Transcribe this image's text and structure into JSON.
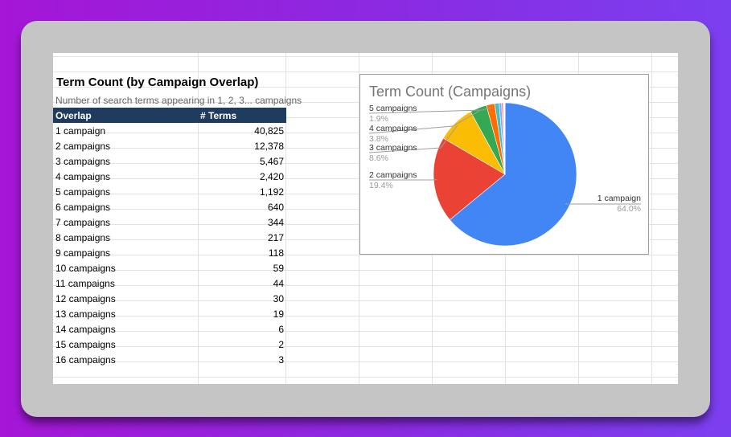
{
  "table": {
    "title": "Term Count (by Campaign Overlap)",
    "subtitle": "Number of search terms appearing in 1, 2, 3... campaigns",
    "col_overlap": "Overlap",
    "col_terms": "# Terms",
    "rows": [
      {
        "label": "1 campaign",
        "value": "40,825"
      },
      {
        "label": "2 campaigns",
        "value": "12,378"
      },
      {
        "label": "3 campaigns",
        "value": "5,467"
      },
      {
        "label": "4 campaigns",
        "value": "2,420"
      },
      {
        "label": "5 campaigns",
        "value": "1,192"
      },
      {
        "label": "6 campaigns",
        "value": "640"
      },
      {
        "label": "7 campaigns",
        "value": "344"
      },
      {
        "label": "8 campaigns",
        "value": "217"
      },
      {
        "label": "9 campaigns",
        "value": "118"
      },
      {
        "label": "10 campaigns",
        "value": "59"
      },
      {
        "label": "11 campaigns",
        "value": "44"
      },
      {
        "label": "12 campaigns",
        "value": "30"
      },
      {
        "label": "13 campaigns",
        "value": "19"
      },
      {
        "label": "14 campaigns",
        "value": "6"
      },
      {
        "label": "15 campaigns",
        "value": "2"
      },
      {
        "label": "16 campaigns",
        "value": "3"
      }
    ]
  },
  "chart_data": {
    "type": "pie",
    "title": "Term Count (Campaigns)",
    "categories": [
      "1 campaign",
      "2 campaigns",
      "3 campaigns",
      "4 campaigns",
      "5 campaigns",
      "6 campaigns",
      "7 campaigns",
      "8 campaigns",
      "9 campaigns",
      "10 campaigns",
      "11 campaigns",
      "12 campaigns",
      "13 campaigns",
      "14 campaigns",
      "15 campaigns",
      "16 campaigns"
    ],
    "values": [
      40825,
      12378,
      5467,
      2420,
      1192,
      640,
      344,
      217,
      118,
      59,
      44,
      30,
      19,
      6,
      2,
      3
    ],
    "colors": [
      "#4285f4",
      "#ea4335",
      "#fbbc04",
      "#34a853",
      "#ff6d01",
      "#46bdc6",
      "#7baaf7",
      "#f07b72",
      "#fcd04f",
      "#71c287",
      "#ff994d",
      "#7ed1d7",
      "#b3cefb",
      "#f7b4ae",
      "#fde49b",
      "#aedcba"
    ],
    "labeled_slices": [
      {
        "label": "1 campaign",
        "percent": "64.0%"
      },
      {
        "label": "2 campaigns",
        "percent": "19.4%"
      },
      {
        "label": "3 campaigns",
        "percent": "8.6%"
      },
      {
        "label": "4 campaigns",
        "percent": "3.8%"
      },
      {
        "label": "5 campaigns",
        "percent": "1.9%"
      }
    ]
  }
}
